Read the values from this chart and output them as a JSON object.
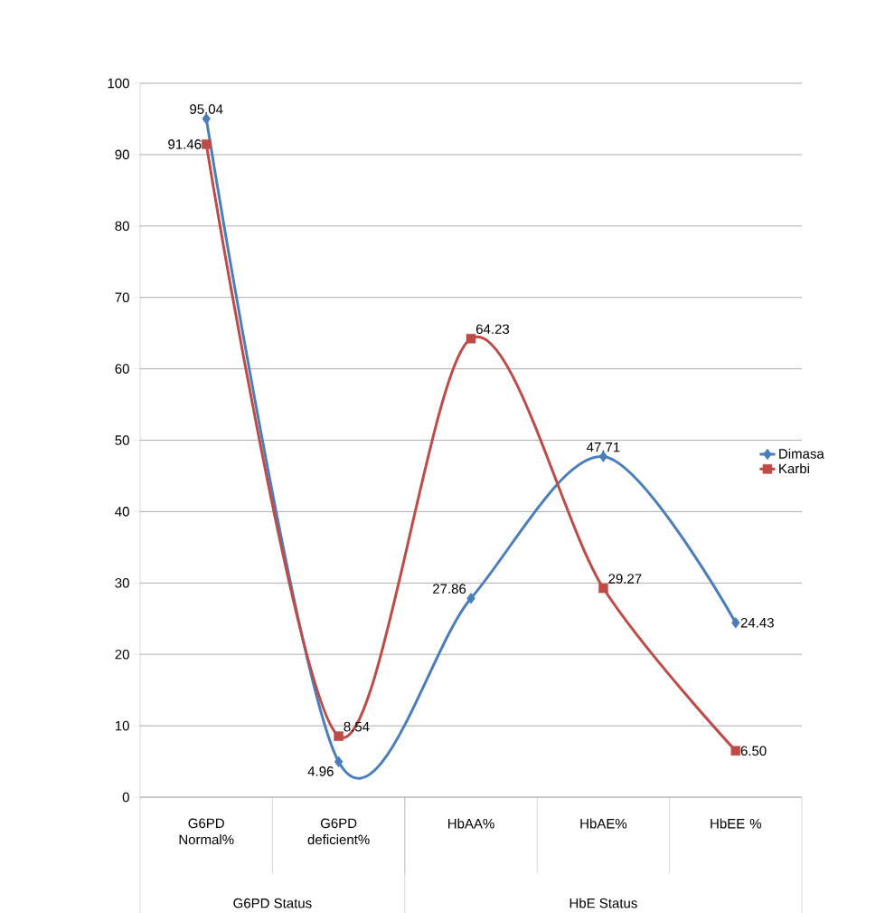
{
  "chart_data": {
    "type": "line",
    "categories": [
      "G6PD Normal%",
      "G6PD deficient%",
      "HbAA%",
      "HbAE%",
      "HbEE %"
    ],
    "series": [
      {
        "name": "Dimasa",
        "color": "#4a7ebb",
        "marker": "diamond",
        "values": [
          95.04,
          4.96,
          27.86,
          47.71,
          24.43
        ],
        "value_labels": [
          "95.04",
          "4.96",
          "27.86",
          "47.71",
          "24.43"
        ]
      },
      {
        "name": "Karbi",
        "color": "#be4b48",
        "marker": "square",
        "values": [
          91.46,
          8.54,
          64.23,
          29.27,
          6.5
        ],
        "value_labels": [
          "91.46",
          "8.54",
          "64.23",
          "29.27",
          "6.50"
        ]
      }
    ],
    "ylim": [
      0,
      100
    ],
    "yticks": [
      0,
      10,
      20,
      30,
      40,
      50,
      60,
      70,
      80,
      90,
      100
    ],
    "grid": "y",
    "legend": "right",
    "line_style": "solid",
    "annotations": [
      "G6PD Status",
      "HbE Status"
    ]
  }
}
